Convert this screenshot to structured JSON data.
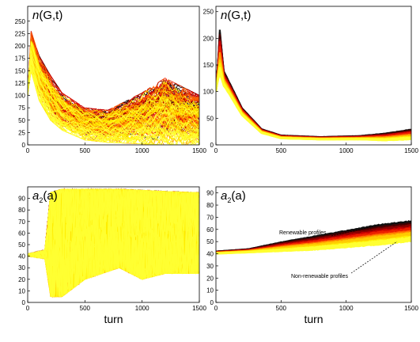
{
  "palette": [
    "#ffff33",
    "#ffee00",
    "#ffcc00",
    "#ff9900",
    "#ff6600",
    "#ee2200",
    "#cc0000",
    "#880000",
    "#440000",
    "#111111"
  ],
  "chart_data": [
    {
      "id": "p1",
      "type": "line",
      "title": "n(G,t)",
      "xlabel": "",
      "ylabel": "",
      "xlim": [
        0,
        1500
      ],
      "ylim": [
        0,
        280
      ],
      "xticks": [
        0,
        500,
        1000,
        1500
      ],
      "yticks": [
        0,
        25,
        50,
        75,
        100,
        125,
        150,
        175,
        200,
        225,
        250
      ],
      "grid": false,
      "series_description": "hundreds of stochastic trajectories coloured black to red to yellow; peak near 230 at t about 30, decaying to 0-40 by t=1500; dark trajectories reach about 130 near t=1200",
      "envelope": {
        "x": [
          0,
          30,
          100,
          200,
          300,
          500,
          700,
          1000,
          1200,
          1500
        ],
        "upper": [
          100,
          230,
          180,
          140,
          105,
          75,
          70,
          105,
          135,
          100
        ],
        "lower": [
          100,
          150,
          90,
          50,
          30,
          10,
          5,
          2,
          0,
          0
        ]
      },
      "annotations": []
    },
    {
      "id": "p2",
      "type": "line",
      "title": "n(G,t)",
      "xlabel": "",
      "ylabel": "",
      "xlim": [
        0,
        1500
      ],
      "ylim": [
        0,
        260
      ],
      "xticks": [
        0,
        500,
        1000,
        1500
      ],
      "yticks": [
        0,
        50,
        100,
        150,
        200,
        250
      ],
      "grid": false,
      "series_description": "averaged trajectories coloured black to red to yellow; spike to about 220 near t=30, decline to about 15 by t=500, slight rise at the end to 20-30",
      "envelope": {
        "x": [
          0,
          15,
          30,
          60,
          100,
          200,
          350,
          500,
          800,
          1100,
          1300,
          1500
        ],
        "upper": [
          100,
          150,
          220,
          140,
          120,
          70,
          30,
          18,
          15,
          17,
          22,
          30
        ],
        "lower": [
          100,
          120,
          130,
          110,
          95,
          55,
          22,
          12,
          10,
          10,
          8,
          10
        ]
      },
      "annotations": []
    },
    {
      "id": "p3",
      "type": "line",
      "title": "a2(a)",
      "title_main": "a",
      "title_sub": "2",
      "title_tail": "(a)",
      "xlabel": "turn",
      "ylabel": "",
      "xlim": [
        0,
        1500
      ],
      "ylim": [
        0,
        100
      ],
      "xticks": [
        0,
        500,
        1000,
        1500
      ],
      "yticks": [
        0,
        10,
        20,
        30,
        40,
        50,
        60,
        70,
        80,
        90
      ],
      "grid": false,
      "series_description": "highly variable trajectories starting at about 42; after t about 200 they spread across roughly 5 to 98; dark lines concentrate near 85-95 later",
      "envelope": {
        "x": [
          0,
          150,
          200,
          300,
          500,
          800,
          1000,
          1200,
          1500
        ],
        "upper": [
          42,
          45,
          95,
          98,
          98,
          98,
          97,
          96,
          95
        ],
        "lower": [
          40,
          38,
          5,
          5,
          20,
          30,
          20,
          25,
          25
        ]
      },
      "annotations": []
    },
    {
      "id": "p4",
      "type": "line",
      "title": "a2(a)",
      "title_main": "a",
      "title_sub": "2",
      "title_tail": "(a)",
      "xlabel": "turn",
      "ylabel": "",
      "xlim": [
        0,
        1500
      ],
      "ylim": [
        0,
        95
      ],
      "xticks": [
        0,
        500,
        1000,
        1500
      ],
      "yticks": [
        0,
        10,
        20,
        30,
        40,
        50,
        60,
        70,
        80,
        90
      ],
      "grid": false,
      "series_description": "smooth fan of trajectories starting at about 42 and rising; dark curves reach about 65 by t=1500, yellow curves stay near 45-55",
      "envelope": {
        "x": [
          0,
          250,
          500,
          750,
          1000,
          1250,
          1500
        ],
        "upper": [
          42,
          44,
          50,
          55,
          60,
          65,
          68
        ],
        "lower": [
          40,
          41,
          42,
          43,
          45,
          47,
          50
        ]
      },
      "annotations": [
        {
          "text": "Renewable profiles",
          "points_to": [
            1270,
            64
          ]
        },
        {
          "text": "Non-renewable profiles",
          "points_to": [
            1390,
            50
          ]
        }
      ]
    }
  ]
}
